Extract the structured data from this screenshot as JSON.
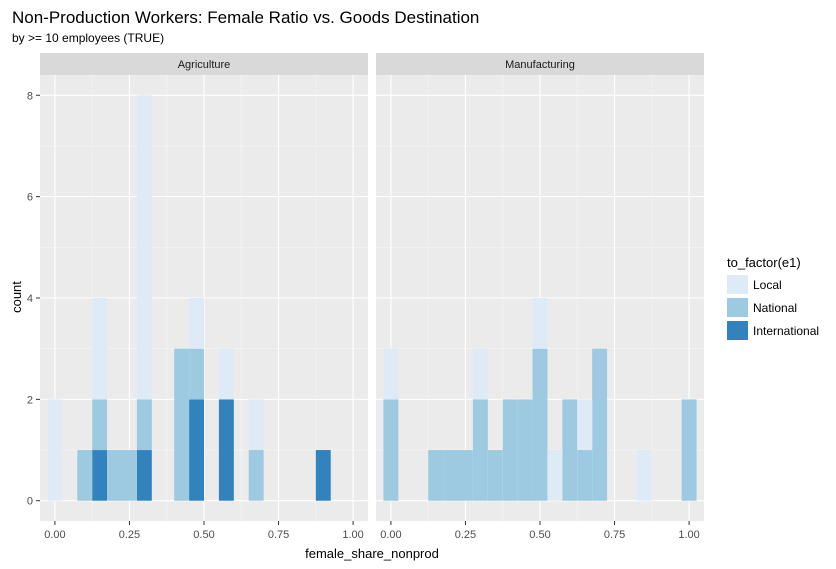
{
  "chart_data": {
    "type": "bar",
    "title": "Non-Production Workers: Female Ratio vs. Goods Destination",
    "subtitle": "by >= 10 employees (TRUE)",
    "xlabel": "female_share_nonprod",
    "ylabel": "count",
    "xlim": [
      -0.05,
      1.05
    ],
    "ylim": [
      -0.4,
      8.4
    ],
    "x_ticks": [
      "0.00",
      "0.25",
      "0.50",
      "0.75",
      "1.00"
    ],
    "x_tick_values": [
      0,
      0.25,
      0.5,
      0.75,
      1.0
    ],
    "y_ticks": [
      "0",
      "2",
      "4",
      "6",
      "8"
    ],
    "y_tick_values": [
      0,
      2,
      4,
      6,
      8
    ],
    "bin_width": 0.05,
    "grid": true,
    "stacked": true,
    "legend": {
      "title": "to_factor(e1)",
      "placement": "right",
      "entries": [
        "Local",
        "National",
        "International"
      ]
    },
    "colors": {
      "Local": "#deebf7",
      "National": "#9ecae1",
      "International": "#3182bd",
      "panel_bg": "#ebebeb",
      "strip_bg": "#d9d9d9",
      "grid": "#ffffff",
      "text": "#4d4d4d",
      "title": "#000000"
    },
    "panels": [
      {
        "name": "Agriculture",
        "series": [
          {
            "name": "International",
            "bins": [
              {
                "x": 0.15,
                "count": 1
              },
              {
                "x": 0.3,
                "count": 1
              },
              {
                "x": 0.475,
                "count": 2
              },
              {
                "x": 0.575,
                "count": 2
              },
              {
                "x": 0.9,
                "count": 1
              }
            ]
          },
          {
            "name": "National",
            "bins": [
              {
                "x": 0.1,
                "count": 1
              },
              {
                "x": 0.15,
                "count": 1
              },
              {
                "x": 0.2,
                "count": 1
              },
              {
                "x": 0.25,
                "count": 1
              },
              {
                "x": 0.3,
                "count": 1
              },
              {
                "x": 0.425,
                "count": 3
              },
              {
                "x": 0.475,
                "count": 1
              },
              {
                "x": 0.675,
                "count": 1
              }
            ]
          },
          {
            "name": "Local",
            "bins": [
              {
                "x": 0.0,
                "count": 2
              },
              {
                "x": 0.15,
                "count": 2
              },
              {
                "x": 0.3,
                "count": 6
              },
              {
                "x": 0.475,
                "count": 1
              },
              {
                "x": 0.575,
                "count": 1
              },
              {
                "x": 0.675,
                "count": 1
              }
            ]
          }
        ]
      },
      {
        "name": "Manufacturing",
        "series": [
          {
            "name": "International",
            "bins": []
          },
          {
            "name": "National",
            "bins": [
              {
                "x": 0.0,
                "count": 2
              },
              {
                "x": 0.15,
                "count": 1
              },
              {
                "x": 0.2,
                "count": 1
              },
              {
                "x": 0.25,
                "count": 1
              },
              {
                "x": 0.3,
                "count": 2
              },
              {
                "x": 0.35,
                "count": 1
              },
              {
                "x": 0.4,
                "count": 2
              },
              {
                "x": 0.45,
                "count": 2
              },
              {
                "x": 0.5,
                "count": 3
              },
              {
                "x": 0.55,
                "count": 0
              },
              {
                "x": 0.6,
                "count": 2
              },
              {
                "x": 0.65,
                "count": 1
              },
              {
                "x": 0.7,
                "count": 3
              },
              {
                "x": 1.0,
                "count": 2
              }
            ]
          },
          {
            "name": "Local",
            "bins": [
              {
                "x": 0.0,
                "count": 1
              },
              {
                "x": 0.3,
                "count": 1
              },
              {
                "x": 0.45,
                "count": 0
              },
              {
                "x": 0.5,
                "count": 1
              },
              {
                "x": 0.55,
                "count": 1
              },
              {
                "x": 0.65,
                "count": 1
              },
              {
                "x": 0.85,
                "count": 1
              }
            ]
          }
        ]
      }
    ]
  }
}
